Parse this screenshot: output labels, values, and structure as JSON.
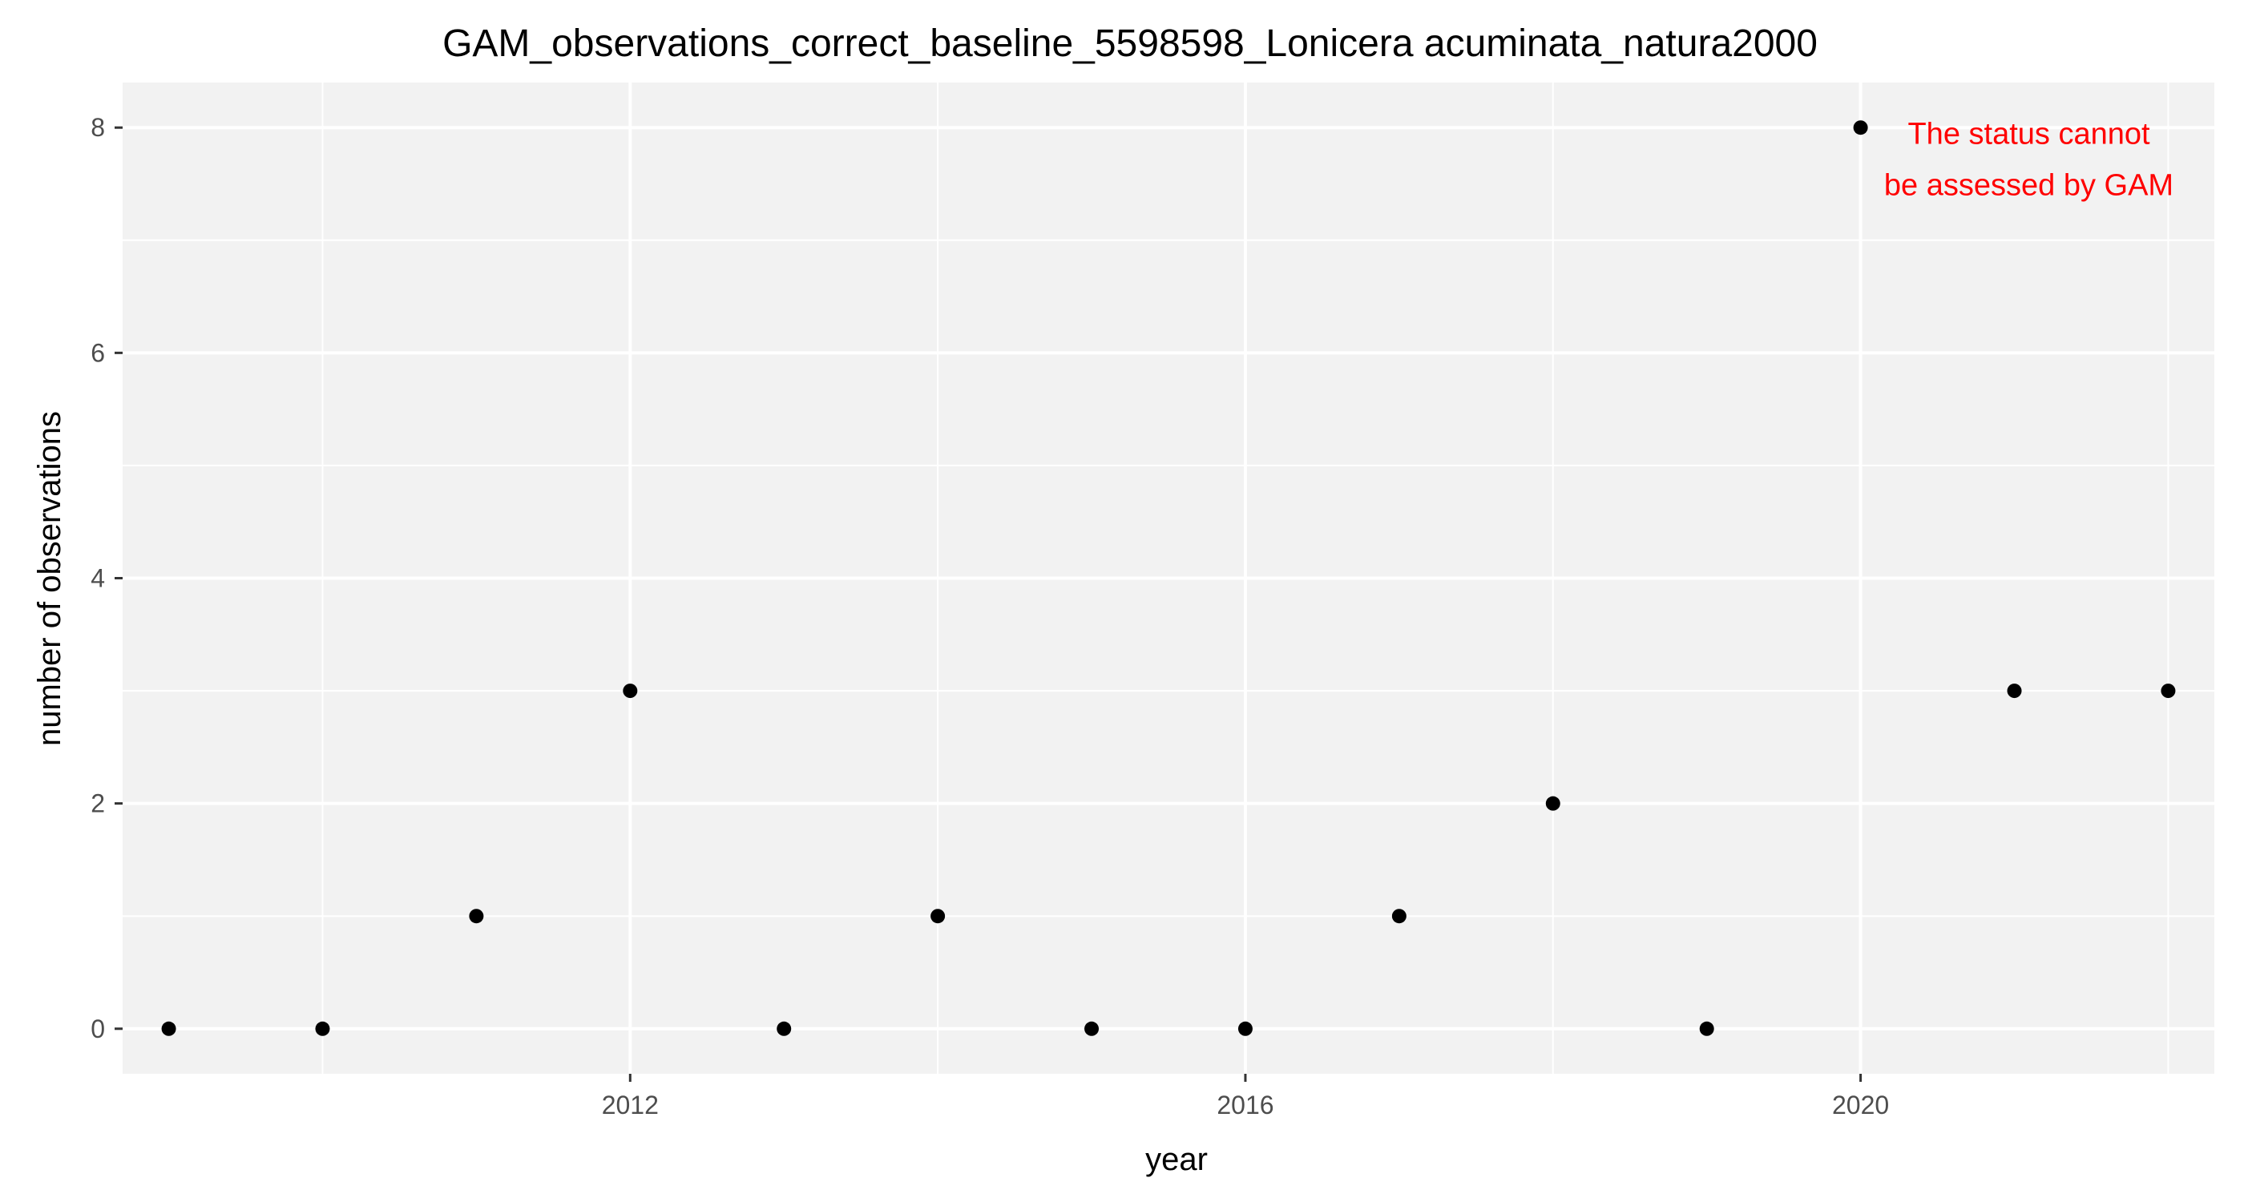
{
  "chart_data": {
    "type": "scatter",
    "title": "GAM_observations_correct_baseline_5598598_Lonicera acuminata_natura2000",
    "xlabel": "year",
    "ylabel": "number of observations",
    "x_ticks": [
      2012,
      2016,
      2020
    ],
    "y_ticks": [
      0,
      2,
      4,
      6,
      8
    ],
    "xlim": [
      2008.7,
      2022.3
    ],
    "ylim": [
      -0.4,
      8.4
    ],
    "grid": true,
    "legend": "none",
    "series": [
      {
        "x": [
          2009,
          2010,
          2011,
          2012,
          2013,
          2014,
          2015,
          2016,
          2017,
          2018,
          2019,
          2020,
          2021,
          2022
        ],
        "y": [
          0,
          0,
          1,
          3,
          0,
          1,
          0,
          0,
          1,
          2,
          0,
          8,
          3,
          3
        ]
      }
    ],
    "annotation": {
      "lines": [
        "The status cannot",
        "be assessed by GAM"
      ],
      "x": 2021,
      "y": 7.7
    },
    "colors": {
      "panel_background": "#f2f2f2",
      "grid": "#ffffff",
      "point": "#000000",
      "annotation": "#ff0000",
      "tick_label": "#4d4d4d",
      "tick_mark": "#333333"
    }
  }
}
